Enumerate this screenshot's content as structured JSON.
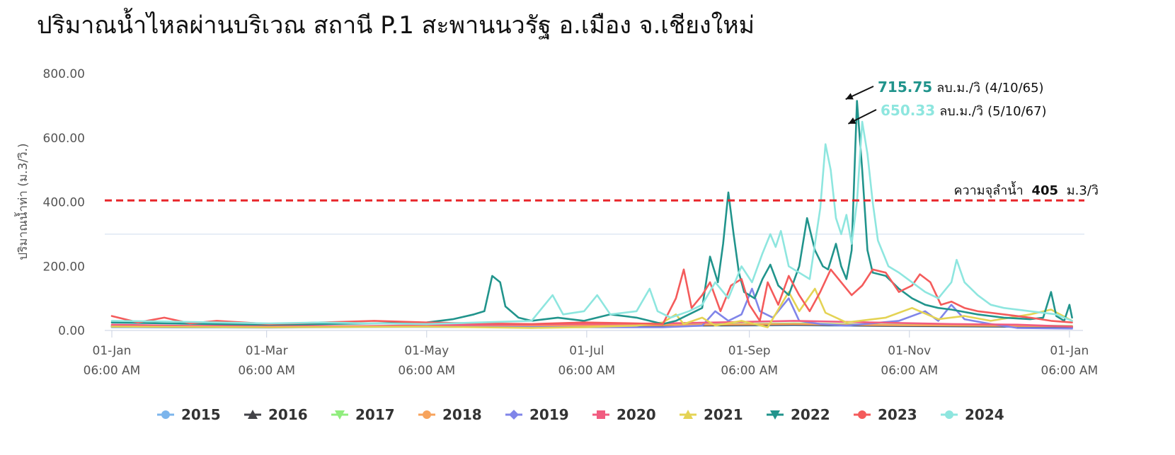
{
  "chart_data": {
    "type": "line",
    "title": "ปริมาณน้ำไหลผ่านบริเวณ สถานี P.1 สะพานนวรัฐ อ.เมือง จ.เชียงใหม่",
    "ylabel": "ปริมาณน้ำท่า (ม.3/วิ.)",
    "xlabel": "",
    "ylim": [
      0,
      800
    ],
    "xlim": [
      0,
      368
    ],
    "y_ticks": [
      "0.00",
      "200.00",
      "400.00",
      "600.00",
      "800.00"
    ],
    "y_tick_values": [
      0,
      200,
      400,
      600,
      800
    ],
    "x_ticks": [
      {
        "day": 0,
        "label": "01-Jan",
        "sub": "06:00 AM"
      },
      {
        "day": 59,
        "label": "01-Mar",
        "sub": "06:00 AM"
      },
      {
        "day": 120,
        "label": "01-May",
        "sub": "06:00 AM"
      },
      {
        "day": 181,
        "label": "01-Jul",
        "sub": "06:00 AM"
      },
      {
        "day": 243,
        "label": "01-Sep",
        "sub": "06:00 AM"
      },
      {
        "day": 304,
        "label": "01-Nov",
        "sub": "06:00 AM"
      },
      {
        "day": 365,
        "label": "01-Jan",
        "sub": "06:00 AM"
      }
    ],
    "threshold": {
      "value": 405,
      "color": "#e8262b",
      "label_prefix": "ความจุลำน้ำ",
      "label_value": "405",
      "label_suffix": "ม.3/วิ"
    },
    "annotations": [
      {
        "value": "715.75",
        "unit": "ลบ.ม./วิ",
        "date": "(4/10/65)",
        "color": "#21948c",
        "x": 277,
        "y": 715.75
      },
      {
        "value": "650.33",
        "unit": "ลบ.ม./วิ",
        "date": "(5/10/67)",
        "color": "#8ee6df",
        "x": 278,
        "y": 650.33
      }
    ],
    "legend_position": "bottom",
    "grid": false,
    "series": [
      {
        "name": "2015",
        "color": "#7cb5ec",
        "marker": "circle",
        "points": [
          [
            0,
            10
          ],
          [
            60,
            9
          ],
          [
            120,
            12
          ],
          [
            170,
            11
          ],
          [
            200,
            13
          ],
          [
            230,
            15
          ],
          [
            260,
            16
          ],
          [
            290,
            14
          ],
          [
            330,
            12
          ],
          [
            366,
            10
          ]
        ]
      },
      {
        "name": "2016",
        "color": "#434348",
        "marker": "triangle",
        "points": [
          [
            0,
            12
          ],
          [
            60,
            10
          ],
          [
            120,
            13
          ],
          [
            170,
            12
          ],
          [
            200,
            14
          ],
          [
            230,
            16
          ],
          [
            260,
            18
          ],
          [
            290,
            15
          ],
          [
            330,
            13
          ],
          [
            366,
            11
          ]
        ]
      },
      {
        "name": "2017",
        "color": "#90ed7d",
        "marker": "triangle-down",
        "points": [
          [
            0,
            15
          ],
          [
            60,
            13
          ],
          [
            120,
            14
          ],
          [
            170,
            15
          ],
          [
            200,
            17
          ],
          [
            230,
            19
          ],
          [
            260,
            22
          ],
          [
            290,
            18
          ],
          [
            330,
            16
          ],
          [
            366,
            14
          ]
        ]
      },
      {
        "name": "2018",
        "color": "#f7a35c",
        "marker": "circle",
        "points": [
          [
            0,
            14
          ],
          [
            60,
            12
          ],
          [
            120,
            13
          ],
          [
            170,
            14
          ],
          [
            200,
            16
          ],
          [
            230,
            18
          ],
          [
            260,
            20
          ],
          [
            290,
            17
          ],
          [
            330,
            15
          ],
          [
            366,
            13
          ]
        ]
      },
      {
        "name": "2019",
        "color": "#8085e9",
        "marker": "diamond",
        "points": [
          [
            0,
            14
          ],
          [
            60,
            12
          ],
          [
            120,
            11
          ],
          [
            180,
            10
          ],
          [
            210,
            10
          ],
          [
            225,
            15
          ],
          [
            230,
            60
          ],
          [
            235,
            30
          ],
          [
            240,
            50
          ],
          [
            244,
            130
          ],
          [
            247,
            60
          ],
          [
            252,
            40
          ],
          [
            258,
            100
          ],
          [
            262,
            30
          ],
          [
            270,
            20
          ],
          [
            280,
            15
          ],
          [
            300,
            30
          ],
          [
            310,
            60
          ],
          [
            315,
            30
          ],
          [
            320,
            80
          ],
          [
            325,
            35
          ],
          [
            335,
            20
          ],
          [
            345,
            8
          ],
          [
            366,
            6
          ]
        ]
      },
      {
        "name": "2020",
        "color": "#f15c80",
        "marker": "square",
        "points": [
          [
            0,
            18
          ],
          [
            30,
            14
          ],
          [
            60,
            15
          ],
          [
            90,
            13
          ],
          [
            120,
            16
          ],
          [
            150,
            18
          ],
          [
            180,
            20
          ],
          [
            210,
            22
          ],
          [
            230,
            25
          ],
          [
            260,
            30
          ],
          [
            290,
            25
          ],
          [
            320,
            20
          ],
          [
            345,
            18
          ],
          [
            366,
            12
          ]
        ]
      },
      {
        "name": "2021",
        "color": "#e4d354",
        "marker": "triangle",
        "points": [
          [
            0,
            12
          ],
          [
            60,
            10
          ],
          [
            120,
            12
          ],
          [
            160,
            8
          ],
          [
            180,
            10
          ],
          [
            200,
            15
          ],
          [
            210,
            25
          ],
          [
            215,
            50
          ],
          [
            218,
            20
          ],
          [
            225,
            40
          ],
          [
            230,
            15
          ],
          [
            240,
            30
          ],
          [
            250,
            10
          ],
          [
            258,
            120
          ],
          [
            262,
            60
          ],
          [
            268,
            130
          ],
          [
            272,
            55
          ],
          [
            280,
            25
          ],
          [
            295,
            40
          ],
          [
            305,
            70
          ],
          [
            315,
            35
          ],
          [
            325,
            45
          ],
          [
            335,
            30
          ],
          [
            350,
            50
          ],
          [
            358,
            65
          ],
          [
            366,
            30
          ]
        ]
      },
      {
        "name": "2022",
        "color": "#21948c",
        "marker": "triangle-down",
        "points": [
          [
            0,
            25
          ],
          [
            20,
            22
          ],
          [
            40,
            20
          ],
          [
            60,
            18
          ],
          [
            80,
            20
          ],
          [
            100,
            22
          ],
          [
            120,
            25
          ],
          [
            130,
            35
          ],
          [
            138,
            50
          ],
          [
            142,
            60
          ],
          [
            145,
            170
          ],
          [
            148,
            150
          ],
          [
            150,
            75
          ],
          [
            155,
            40
          ],
          [
            160,
            30
          ],
          [
            170,
            40
          ],
          [
            180,
            30
          ],
          [
            190,
            50
          ],
          [
            200,
            40
          ],
          [
            210,
            20
          ],
          [
            215,
            30
          ],
          [
            220,
            50
          ],
          [
            225,
            70
          ],
          [
            228,
            230
          ],
          [
            231,
            150
          ],
          [
            233,
            270
          ],
          [
            235,
            430
          ],
          [
            237,
            300
          ],
          [
            239,
            180
          ],
          [
            241,
            120
          ],
          [
            245,
            100
          ],
          [
            248,
            160
          ],
          [
            251,
            205
          ],
          [
            254,
            140
          ],
          [
            258,
            110
          ],
          [
            262,
            200
          ],
          [
            265,
            350
          ],
          [
            268,
            250
          ],
          [
            271,
            200
          ],
          [
            273,
            190
          ],
          [
            276,
            270
          ],
          [
            278,
            200
          ],
          [
            280,
            160
          ],
          [
            282,
            250
          ],
          [
            284,
            715
          ],
          [
            286,
            500
          ],
          [
            288,
            250
          ],
          [
            290,
            180
          ],
          [
            295,
            170
          ],
          [
            300,
            130
          ],
          [
            305,
            100
          ],
          [
            310,
            80
          ],
          [
            315,
            70
          ],
          [
            320,
            65
          ],
          [
            330,
            50
          ],
          [
            340,
            40
          ],
          [
            350,
            35
          ],
          [
            355,
            40
          ],
          [
            358,
            120
          ],
          [
            360,
            45
          ],
          [
            363,
            30
          ],
          [
            365,
            80
          ],
          [
            366,
            40
          ]
        ]
      },
      {
        "name": "2023",
        "color": "#f45b5b",
        "marker": "circle",
        "points": [
          [
            0,
            45
          ],
          [
            10,
            25
          ],
          [
            20,
            40
          ],
          [
            30,
            22
          ],
          [
            40,
            30
          ],
          [
            60,
            20
          ],
          [
            80,
            25
          ],
          [
            100,
            30
          ],
          [
            120,
            25
          ],
          [
            140,
            22
          ],
          [
            160,
            20
          ],
          [
            180,
            25
          ],
          [
            200,
            22
          ],
          [
            210,
            20
          ],
          [
            215,
            100
          ],
          [
            218,
            190
          ],
          [
            221,
            70
          ],
          [
            225,
            110
          ],
          [
            228,
            150
          ],
          [
            232,
            60
          ],
          [
            236,
            140
          ],
          [
            240,
            160
          ],
          [
            243,
            80
          ],
          [
            247,
            30
          ],
          [
            250,
            150
          ],
          [
            254,
            80
          ],
          [
            258,
            170
          ],
          [
            262,
            110
          ],
          [
            266,
            60
          ],
          [
            270,
            120
          ],
          [
            274,
            190
          ],
          [
            278,
            150
          ],
          [
            282,
            110
          ],
          [
            286,
            140
          ],
          [
            290,
            190
          ],
          [
            295,
            180
          ],
          [
            300,
            120
          ],
          [
            305,
            140
          ],
          [
            308,
            175
          ],
          [
            312,
            150
          ],
          [
            316,
            80
          ],
          [
            320,
            90
          ],
          [
            325,
            70
          ],
          [
            330,
            60
          ],
          [
            340,
            50
          ],
          [
            350,
            40
          ],
          [
            358,
            30
          ],
          [
            366,
            25
          ]
        ]
      },
      {
        "name": "2024",
        "color": "#8ee6df",
        "marker": "circle",
        "points": [
          [
            0,
            30
          ],
          [
            20,
            28
          ],
          [
            40,
            25
          ],
          [
            60,
            22
          ],
          [
            80,
            25
          ],
          [
            100,
            22
          ],
          [
            120,
            20
          ],
          [
            140,
            25
          ],
          [
            160,
            30
          ],
          [
            168,
            110
          ],
          [
            172,
            50
          ],
          [
            180,
            60
          ],
          [
            185,
            110
          ],
          [
            190,
            50
          ],
          [
            200,
            60
          ],
          [
            205,
            130
          ],
          [
            208,
            60
          ],
          [
            213,
            40
          ],
          [
            220,
            60
          ],
          [
            225,
            80
          ],
          [
            230,
            150
          ],
          [
            235,
            100
          ],
          [
            240,
            200
          ],
          [
            244,
            150
          ],
          [
            248,
            240
          ],
          [
            251,
            300
          ],
          [
            253,
            260
          ],
          [
            255,
            310
          ],
          [
            258,
            200
          ],
          [
            262,
            180
          ],
          [
            266,
            160
          ],
          [
            270,
            380
          ],
          [
            272,
            580
          ],
          [
            274,
            500
          ],
          [
            276,
            350
          ],
          [
            278,
            300
          ],
          [
            280,
            360
          ],
          [
            282,
            270
          ],
          [
            284,
            400
          ],
          [
            286,
            650
          ],
          [
            288,
            550
          ],
          [
            290,
            400
          ],
          [
            292,
            280
          ],
          [
            296,
            200
          ],
          [
            300,
            180
          ],
          [
            305,
            150
          ],
          [
            310,
            120
          ],
          [
            315,
            100
          ],
          [
            320,
            150
          ],
          [
            322,
            220
          ],
          [
            325,
            150
          ],
          [
            330,
            110
          ],
          [
            335,
            80
          ],
          [
            340,
            70
          ],
          [
            350,
            60
          ],
          [
            360,
            50
          ],
          [
            366,
            30
          ]
        ]
      }
    ]
  }
}
